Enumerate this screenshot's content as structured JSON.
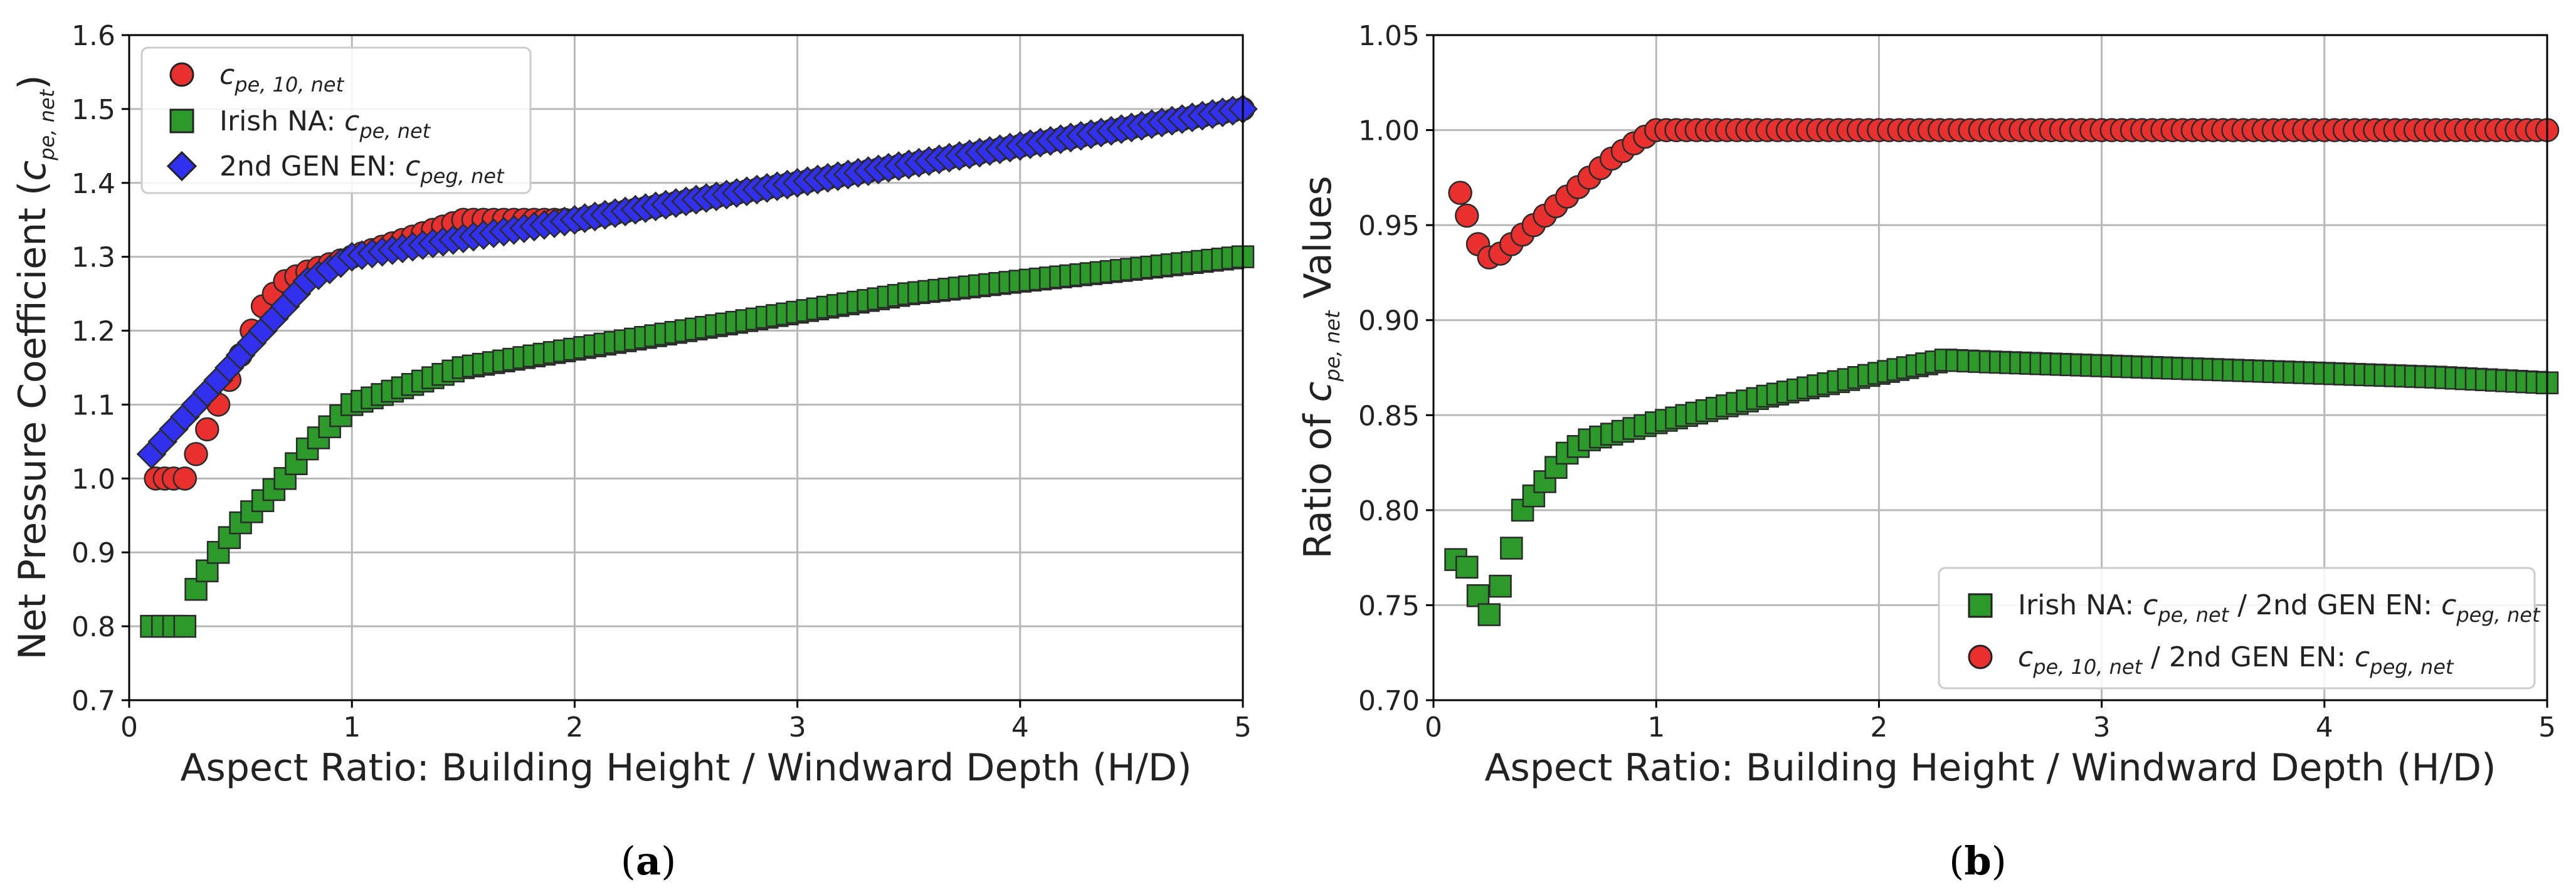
{
  "chart_data": [
    {
      "type": "scatter",
      "caption": {
        "open": "(",
        "letter": "a",
        "close": ")"
      },
      "xlabel": "Aspect Ratio: Building Height / Windward Depth (H/D)",
      "ylabel": "Net Pressure Coefficient (c_pe,net)",
      "ylabel_parts": {
        "pre": "Net Pressure Coefficient (",
        "var": "c",
        "sub": "pe, net",
        "post": ")"
      },
      "xlim": [
        0,
        5
      ],
      "ylim": [
        0.7,
        1.6
      ],
      "xticks": [
        "0",
        "1",
        "2",
        "3",
        "4",
        "5"
      ],
      "yticks": [
        "0.7",
        "0.8",
        "0.9",
        "1.0",
        "1.1",
        "1.2",
        "1.3",
        "1.4",
        "1.5",
        "1.6"
      ],
      "legend_position": "top-left",
      "series": [
        {
          "name": "c_pe,10,net",
          "legend": {
            "pre": "",
            "var": "c",
            "sub": "pe, 10, net"
          },
          "marker": "circle",
          "color": "#e8312f",
          "x": [
            0.12,
            0.2,
            0.25,
            0.3,
            0.4,
            0.5,
            0.6,
            0.7,
            0.8,
            0.9,
            1.0,
            1.5,
            2.0,
            2.5,
            3.0,
            3.5,
            4.0,
            4.5,
            5.0
          ],
          "y": [
            1.0,
            1.0,
            1.0,
            1.033,
            1.1,
            1.167,
            1.233,
            1.267,
            1.28,
            1.29,
            1.3,
            1.35,
            1.35,
            1.375,
            1.4,
            1.425,
            1.45,
            1.475,
            1.5
          ]
        },
        {
          "name": "Irish NA: c_pe,net",
          "legend": {
            "pre": "Irish NA: ",
            "var": "c",
            "sub": "pe, net"
          },
          "marker": "square",
          "color": "#2b9a2b",
          "x": [
            0.1,
            0.2,
            0.25,
            0.3,
            0.4,
            0.5,
            0.6,
            0.7,
            0.8,
            0.9,
            1.0,
            1.5,
            2.0,
            2.5,
            3.0,
            3.5,
            4.0,
            4.5,
            5.0
          ],
          "y": [
            0.8,
            0.8,
            0.8,
            0.85,
            0.9,
            0.94,
            0.97,
            1.0,
            1.04,
            1.07,
            1.1,
            1.15,
            1.175,
            1.2,
            1.225,
            1.25,
            1.267,
            1.283,
            1.3
          ]
        },
        {
          "name": "2nd GEN EN: c_peg,net",
          "legend": {
            "pre": "2nd GEN EN: ",
            "var": "c",
            "sub": "peg, net"
          },
          "marker": "diamond",
          "color": "#3030ee",
          "x": [
            0.1,
            0.2,
            0.3,
            0.4,
            0.5,
            0.6,
            0.7,
            0.8,
            0.9,
            1.0,
            1.5,
            2.0,
            2.5,
            3.0,
            3.5,
            4.0,
            4.5,
            5.0
          ],
          "y": [
            1.033,
            1.067,
            1.1,
            1.133,
            1.167,
            1.2,
            1.233,
            1.267,
            1.283,
            1.3,
            1.325,
            1.35,
            1.375,
            1.4,
            1.425,
            1.45,
            1.475,
            1.5
          ]
        }
      ]
    },
    {
      "type": "scatter",
      "caption": {
        "open": "(",
        "letter": "b",
        "close": ")"
      },
      "xlabel": "Aspect Ratio: Building Height / Windward Depth (H/D)",
      "ylabel": "Ratio of c_pe,net Values",
      "ylabel_parts": {
        "pre": "Ratio of ",
        "var": "c",
        "sub": "pe, net",
        "post": " Values"
      },
      "xlim": [
        0,
        5
      ],
      "ylim": [
        0.7,
        1.05
      ],
      "xticks": [
        "0",
        "1",
        "2",
        "3",
        "4",
        "5"
      ],
      "yticks": [
        "0.70",
        "0.75",
        "0.80",
        "0.85",
        "0.90",
        "0.95",
        "1.00",
        "1.05"
      ],
      "legend_position": "bottom-right",
      "series": [
        {
          "name": "Irish NA: c_pe,net / 2nd GEN EN: c_peg,net",
          "legend": {
            "pre": "Irish NA: ",
            "var": "c",
            "sub": "pe, net",
            "mid": " / 2nd GEN EN: ",
            "var2": "c",
            "sub2": "peg, net"
          },
          "marker": "square",
          "color": "#2b9a2b",
          "x": [
            0.1,
            0.15,
            0.2,
            0.25,
            0.3,
            0.35,
            0.4,
            0.5,
            0.6,
            0.7,
            0.8,
            1.0,
            1.5,
            2.0,
            2.3,
            2.5,
            3.0,
            3.5,
            4.0,
            4.5,
            5.0
          ],
          "y": [
            0.774,
            0.77,
            0.755,
            0.745,
            0.76,
            0.78,
            0.8,
            0.815,
            0.83,
            0.837,
            0.84,
            0.846,
            0.86,
            0.872,
            0.879,
            0.878,
            0.876,
            0.874,
            0.872,
            0.87,
            0.867
          ]
        },
        {
          "name": "c_pe,10,net / 2nd GEN EN: c_peg,net",
          "legend": {
            "pre": "",
            "var": "c",
            "sub": "pe, 10, net",
            "mid": " / 2nd GEN EN: ",
            "var2": "c",
            "sub2": "peg, net"
          },
          "marker": "circle",
          "color": "#e8312f",
          "x": [
            0.12,
            0.15,
            0.2,
            0.25,
            0.3,
            0.4,
            0.5,
            0.6,
            0.7,
            0.8,
            0.9,
            1.0,
            1.5,
            2.0,
            2.5,
            3.0,
            3.5,
            4.0,
            4.5,
            5.0
          ],
          "y": [
            0.967,
            0.955,
            0.94,
            0.933,
            0.935,
            0.945,
            0.955,
            0.965,
            0.975,
            0.985,
            0.993,
            1.0,
            1.0,
            1.0,
            1.0,
            1.0,
            1.0,
            1.0,
            1.0,
            1.0
          ]
        }
      ]
    }
  ]
}
